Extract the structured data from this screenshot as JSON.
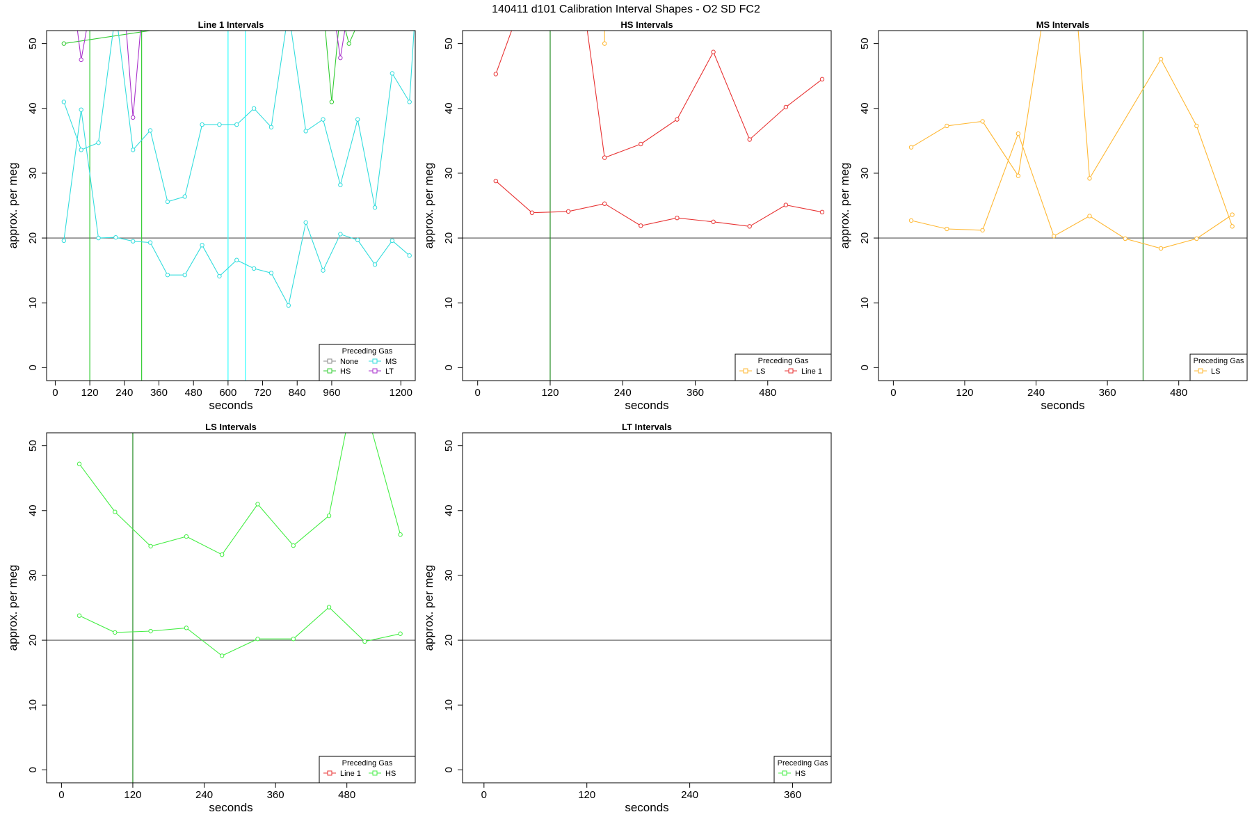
{
  "figure_title": "140411   d101   Calibration Interval Shapes - O2 SD FC2",
  "chart_data": [
    {
      "type": "line",
      "title": "Line 1 Intervals",
      "xlabel": "seconds",
      "ylabel": "approx. per meg",
      "xlim": [
        -30,
        1250
      ],
      "ylim": [
        -2,
        52
      ],
      "xticks": [
        0,
        120,
        240,
        360,
        480,
        600,
        720,
        840,
        960,
        1200
      ],
      "yticks": [
        0,
        10,
        20,
        30,
        40,
        50
      ],
      "hlines": [
        20
      ],
      "vlines": [
        {
          "x": 120,
          "color": "#33cc33"
        },
        {
          "x": 300,
          "color": "#33cc33"
        },
        {
          "x": 600,
          "color": "#33ffff"
        },
        {
          "x": 660,
          "color": "#33ffff"
        }
      ],
      "legend": {
        "title": "Preceding Gas",
        "position": "bottom-right",
        "columns": 2,
        "entries": [
          {
            "label": "None",
            "color": "#888888"
          },
          {
            "label": "MS",
            "color": "#33dddd"
          },
          {
            "label": "HS",
            "color": "#33cc33"
          },
          {
            "label": "LT",
            "color": "#aa33cc"
          }
        ]
      },
      "series": [
        {
          "color": "#33cc33",
          "x": [
            30,
            930,
            960,
            990,
            1020,
            1050
          ],
          "y": [
            50,
            56,
            41,
            55,
            50,
            53
          ]
        },
        {
          "color": "#aa33cc",
          "x": [
            60,
            90,
            120,
            240,
            270,
            300,
            960,
            990,
            1020
          ],
          "y": [
            58,
            47.5,
            55,
            56,
            38.6,
            54,
            57,
            47.8,
            56
          ]
        },
        {
          "color": "#33dddd",
          "x": [
            30,
            90,
            150,
            210,
            270,
            330,
            390,
            450,
            510,
            570,
            630,
            690,
            750,
            810,
            870,
            930,
            990,
            1050,
            1110,
            1170,
            1230,
            1250
          ],
          "y": [
            41,
            33.6,
            34.7,
            55,
            33.6,
            36.6,
            25.6,
            26.4,
            37.5,
            37.5,
            37.5,
            40,
            37.1,
            55,
            36.5,
            38.3,
            28.2,
            38.3,
            24.7,
            45.4,
            41,
            55
          ]
        },
        {
          "color": "#33dddd",
          "x": [
            30,
            90,
            150,
            210,
            270,
            330,
            390,
            450,
            510,
            570,
            630,
            690,
            750,
            810,
            870,
            930,
            990,
            1050,
            1110,
            1170,
            1230
          ],
          "y": [
            19.6,
            39.8,
            20,
            20.1,
            19.5,
            19.3,
            14.3,
            14.3,
            18.9,
            14.1,
            16.6,
            15.3,
            14.6,
            9.6,
            22.4,
            15,
            20.6,
            19.7,
            15.9,
            19.6,
            17.3
          ]
        }
      ]
    },
    {
      "type": "line",
      "title": "HS Intervals",
      "xlabel": "seconds",
      "ylabel": "approx. per meg",
      "xlim": [
        -25,
        585
      ],
      "ylim": [
        -2,
        52
      ],
      "xticks": [
        0,
        120,
        240,
        360,
        480
      ],
      "yticks": [
        0,
        10,
        20,
        30,
        40,
        50
      ],
      "hlines": [
        20
      ],
      "vlines": [
        {
          "x": 120,
          "color": "#228b22"
        }
      ],
      "legend": {
        "title": "Preceding Gas",
        "position": "bottom-right",
        "columns": 2,
        "entries": [
          {
            "label": "LS",
            "color": "#ffb833"
          },
          {
            "label": "Line 1",
            "color": "#e83333"
          }
        ]
      },
      "series": [
        {
          "color": "#e83333",
          "x": [
            30,
            60,
            180,
            210,
            270,
            330,
            390,
            450,
            510,
            570
          ],
          "y": [
            45.3,
            53,
            53,
            32.4,
            34.5,
            38.3,
            48.7,
            35.2,
            40.2,
            44.5
          ]
        },
        {
          "color": "#e83333",
          "x": [
            30,
            90,
            150,
            210,
            270,
            330,
            390,
            450,
            510,
            570
          ],
          "y": [
            28.8,
            23.9,
            24.1,
            25.3,
            21.9,
            23.1,
            22.5,
            21.8,
            25.1,
            24
          ]
        },
        {
          "color": "#ffb833",
          "x": [
            210,
            210
          ],
          "y": [
            50,
            53
          ]
        }
      ]
    },
    {
      "type": "line",
      "title": "MS Intervals",
      "xlabel": "seconds",
      "ylabel": "approx. per meg",
      "xlim": [
        -25,
        595
      ],
      "ylim": [
        -2,
        52
      ],
      "xticks": [
        0,
        120,
        240,
        360,
        480
      ],
      "yticks": [
        0,
        10,
        20,
        30,
        40,
        50
      ],
      "hlines": [
        20
      ],
      "vlines": [
        {
          "x": 420,
          "color": "#228b22"
        }
      ],
      "legend": {
        "title": "Preceding Gas",
        "position": "bottom-right",
        "columns": 1,
        "entries": [
          {
            "label": "LS",
            "color": "#ffb833"
          }
        ]
      },
      "series": [
        {
          "color": "#ffb833",
          "x": [
            30,
            90,
            150,
            210,
            250,
            310,
            330,
            450,
            510,
            570
          ],
          "y": [
            34,
            37.3,
            38,
            29.6,
            53,
            53,
            29.2,
            47.6,
            37.3,
            21.8
          ]
        },
        {
          "color": "#ffb833",
          "x": [
            30,
            90,
            150,
            210,
            270,
            330,
            390,
            450,
            510,
            570
          ],
          "y": [
            22.7,
            21.4,
            21.2,
            36.1,
            20.3,
            23.4,
            19.9,
            18.4,
            19.9,
            23.6
          ]
        }
      ]
    },
    {
      "type": "line",
      "title": "LS Intervals",
      "xlabel": "seconds",
      "ylabel": "approx. per meg",
      "xlim": [
        -25,
        595
      ],
      "ylim": [
        -2,
        52
      ],
      "xticks": [
        0,
        120,
        240,
        360,
        480
      ],
      "yticks": [
        0,
        10,
        20,
        30,
        40,
        50
      ],
      "hlines": [
        20
      ],
      "vlines": [
        {
          "x": 120,
          "color": "#228b22"
        }
      ],
      "legend": {
        "title": "Preceding Gas",
        "position": "bottom-right",
        "columns": 2,
        "entries": [
          {
            "label": "Line 1",
            "color": "#e83333"
          },
          {
            "label": "HS",
            "color": "#44ee44"
          }
        ]
      },
      "series": [
        {
          "color": "#44ee44",
          "x": [
            30,
            90,
            150,
            210,
            270,
            330,
            390,
            450,
            480,
            520,
            570
          ],
          "y": [
            47.2,
            39.8,
            34.5,
            36,
            33.2,
            41,
            34.6,
            39.2,
            53,
            53,
            36.3
          ]
        },
        {
          "color": "#44ee44",
          "x": [
            30,
            90,
            150,
            210,
            270,
            330,
            390,
            450,
            510,
            570
          ],
          "y": [
            23.8,
            21.2,
            21.4,
            21.9,
            17.6,
            20.2,
            20.2,
            25.1,
            19.8,
            21
          ]
        }
      ]
    },
    {
      "type": "line",
      "title": "LT Intervals",
      "xlabel": "seconds",
      "ylabel": "approx. per meg",
      "xlim": [
        -25,
        405
      ],
      "ylim": [
        -2,
        52
      ],
      "xticks": [
        0,
        120,
        240,
        360
      ],
      "yticks": [
        0,
        10,
        20,
        30,
        40,
        50
      ],
      "hlines": [
        20
      ],
      "vlines": [],
      "legend": {
        "title": "Preceding Gas",
        "position": "bottom-right",
        "columns": 1,
        "entries": [
          {
            "label": "HS",
            "color": "#44ee44"
          }
        ]
      },
      "series": []
    }
  ]
}
